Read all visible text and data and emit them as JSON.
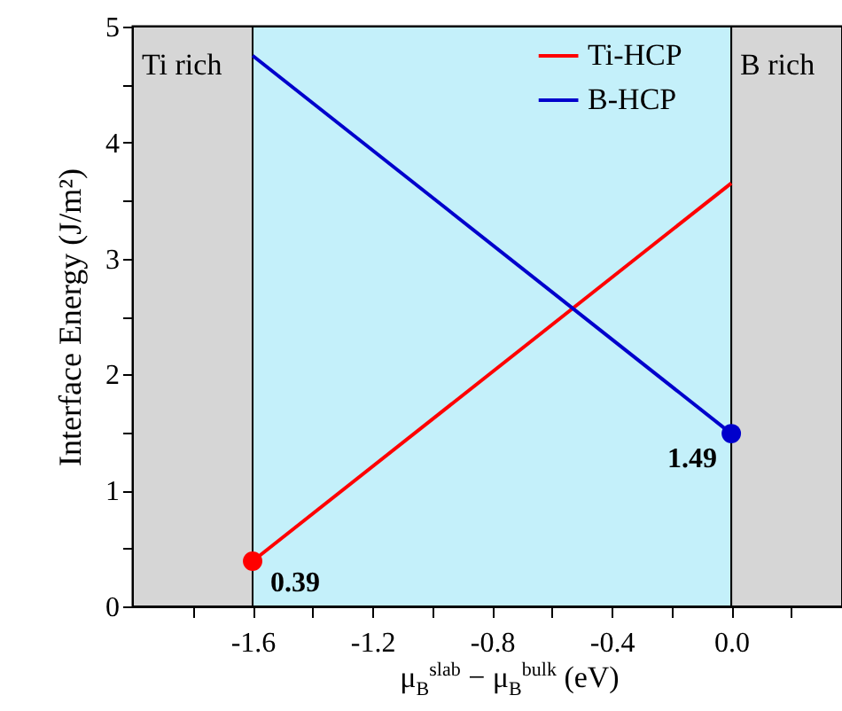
{
  "chart_data": {
    "type": "line",
    "xlabel": "μ$_{B}$$^{slab}$ − μ$_{B}$$^{bulk}$  (eV)",
    "ylabel": "Interface Energy (J/m²)",
    "x": [
      -1.6,
      0
    ],
    "xlim": [
      -2.0,
      0.37
    ],
    "xticks": [
      {
        "value": -1.8,
        "label": null
      },
      -1.6,
      {
        "value": -1.4,
        "label": null
      },
      -1.2,
      {
        "value": -1.0,
        "label": null
      },
      -0.8,
      {
        "value": -0.6,
        "label": null
      },
      -0.4,
      {
        "value": -0.2,
        "label": null
      },
      {
        "value": 0,
        "label": "0.0"
      },
      {
        "value": 0.2,
        "label": null
      }
    ],
    "ylim": [
      0,
      5
    ],
    "yticks": [
      0,
      {
        "value": 0.5,
        "label": null
      },
      1,
      {
        "value": 1.5,
        "label": null
      },
      2,
      {
        "value": 2.5,
        "label": null
      },
      3,
      {
        "value": 3.5,
        "label": null
      },
      4,
      {
        "value": 4.5,
        "label": null
      },
      5
    ],
    "series": [
      {
        "name": "Ti-HCP",
        "color": "#ff0000",
        "values": [
          0.39,
          3.65
        ]
      },
      {
        "name": "B-HCP",
        "color": "#0000cc",
        "values": [
          4.75,
          1.49
        ]
      },
      {
        "type": "scatter",
        "color": "#ff0000",
        "x": [
          -1.6
        ],
        "values": [
          0.39
        ],
        "value_labels": [
          "0.39"
        ]
      },
      {
        "type": "scatter",
        "color": "#0000cc",
        "x": [
          0
        ],
        "values": [
          1.49
        ],
        "value_labels": [
          "1.49"
        ]
      }
    ],
    "bands": [
      {
        "axis": "x",
        "from": -2.0,
        "to": -1.6,
        "label": "Ti rich",
        "color": "#d6d6d6"
      },
      {
        "axis": "x",
        "from": -1.6,
        "to": 0,
        "label": null,
        "color": "#c4f0fa"
      },
      {
        "axis": "x",
        "from": 0,
        "to": 0.37,
        "label": "B rich",
        "color": "#d6d6d6"
      }
    ],
    "legend": "top right"
  }
}
